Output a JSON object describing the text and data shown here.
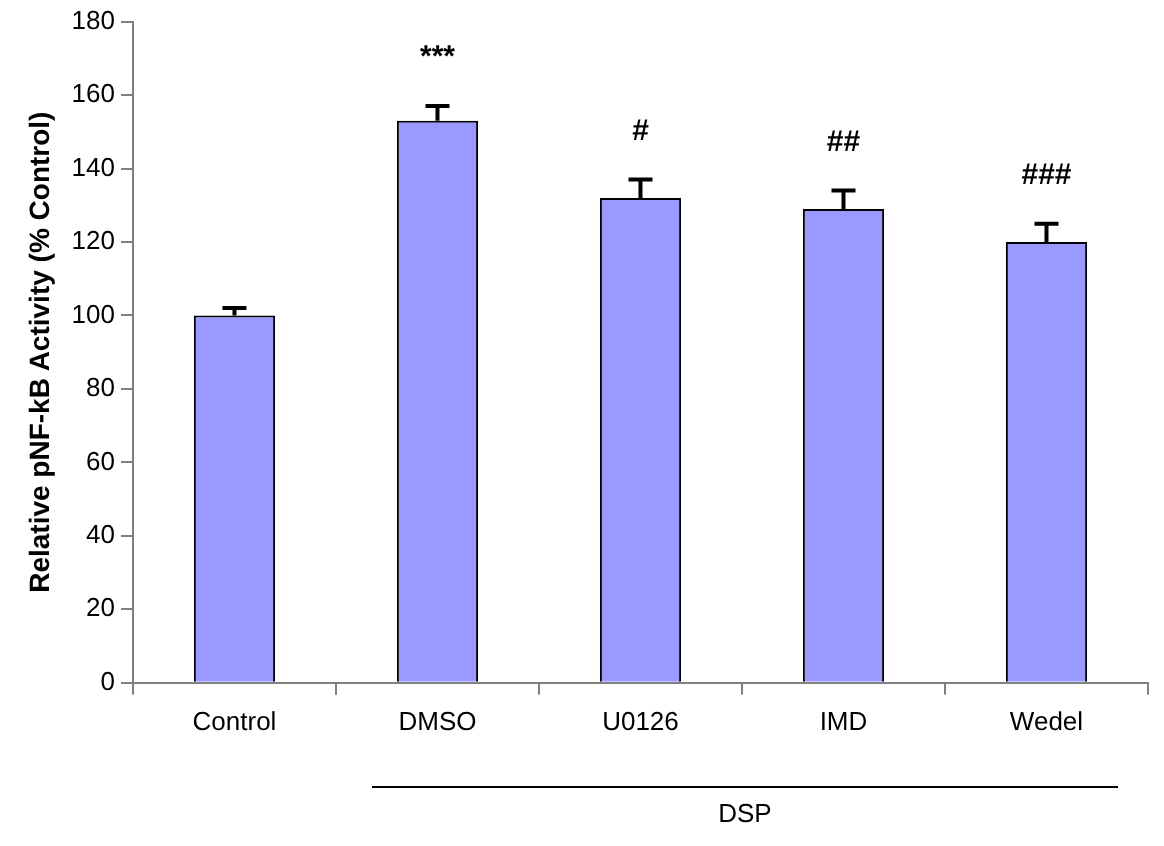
{
  "chart_data": {
    "type": "bar",
    "ylabel": "Relative pNF-kB Activity (% Control)",
    "categories": [
      "Control",
      "DMSO",
      "U0126",
      "IMD",
      "Wedel"
    ],
    "values": [
      100,
      153,
      132,
      129,
      120
    ],
    "errors": [
      [
        100,
        102
      ],
      [
        153,
        157
      ],
      [
        132,
        137
      ],
      [
        129,
        134
      ],
      [
        120,
        125
      ]
    ],
    "color": "#9999ff",
    "ylim": [
      0,
      180
    ],
    "yticks": [
      0,
      20,
      40,
      60,
      80,
      100,
      120,
      140,
      160,
      180
    ],
    "grid": false,
    "legend": false,
    "annotations": [
      "***",
      "#",
      "##",
      "###",
      "DSP"
    ]
  }
}
